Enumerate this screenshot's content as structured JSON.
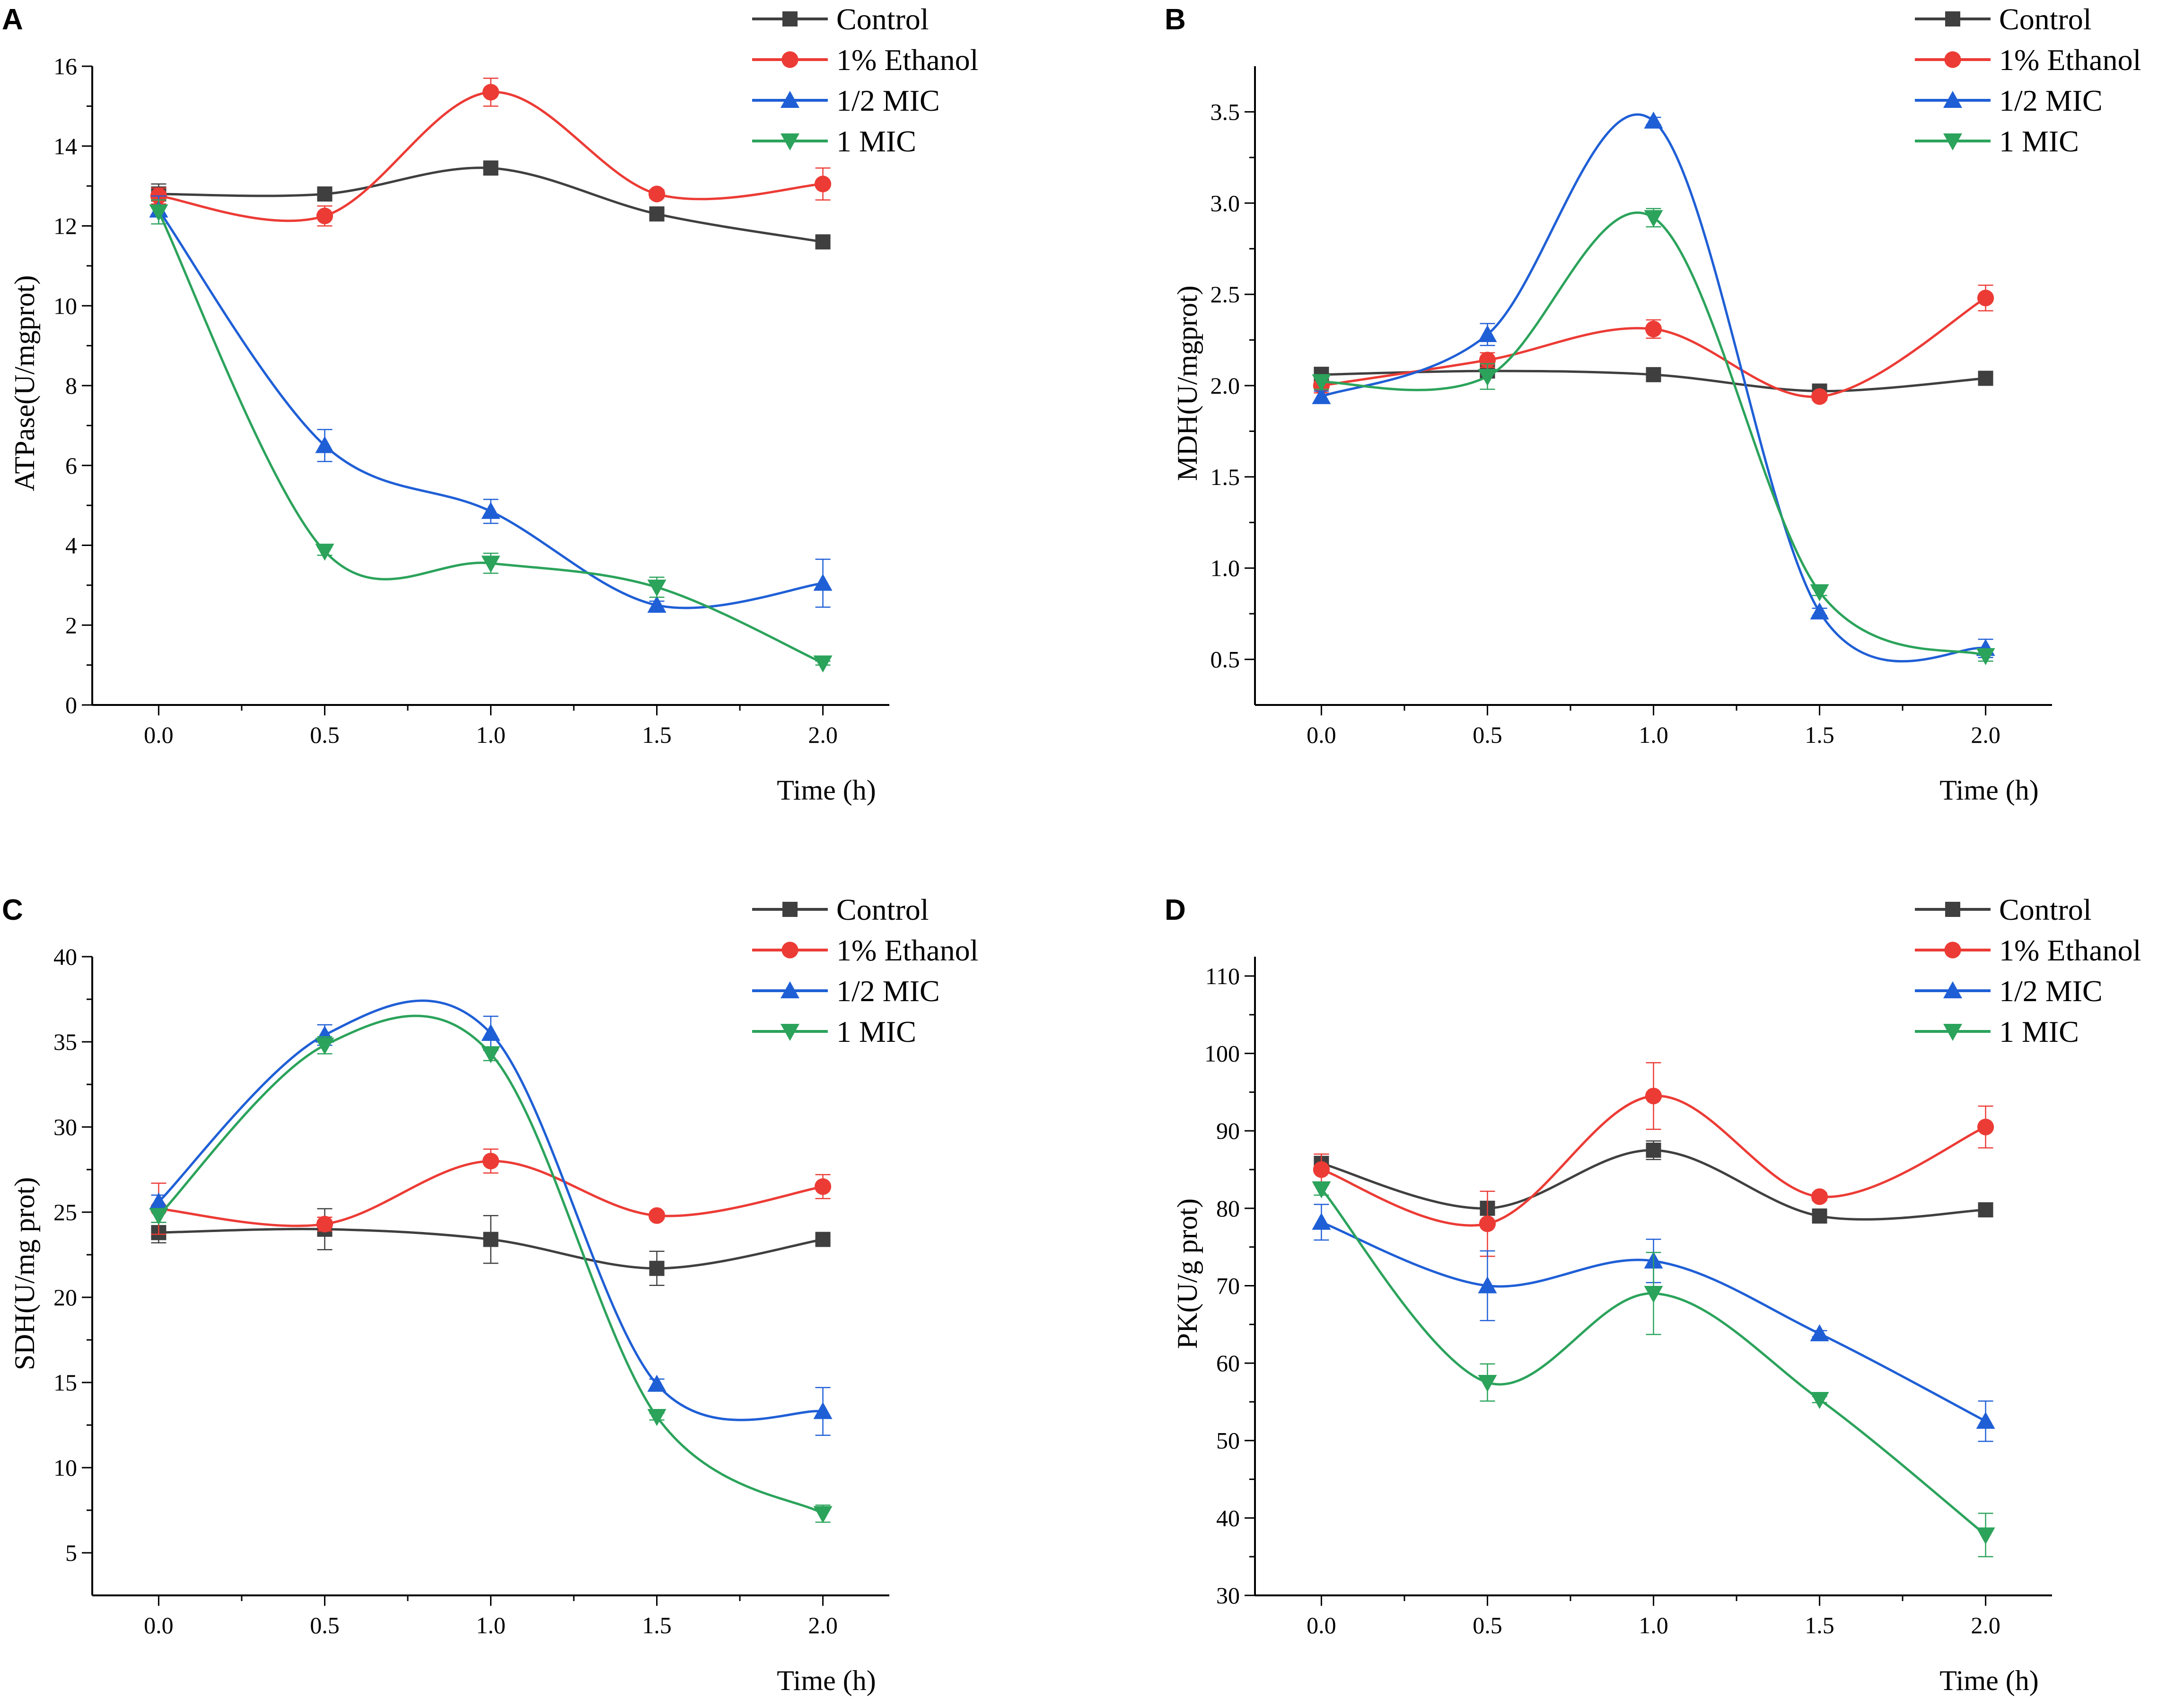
{
  "chart_data": [
    {
      "panel": "A",
      "type": "line",
      "title": "",
      "xlabel": "Time (h)",
      "ylabel": "ATPase(U/mgprot)",
      "xlim": [
        -0.2,
        2.2
      ],
      "ylim": [
        0,
        16
      ],
      "xticks": [
        "0.0",
        "0.5",
        "1.0",
        "1.5",
        "2.0"
      ],
      "yticks": [
        "0",
        "2",
        "4",
        "6",
        "8",
        "10",
        "12",
        "14",
        "16"
      ],
      "x": [
        0,
        0.5,
        1.0,
        1.5,
        2.0
      ],
      "series": [
        {
          "name": "Control",
          "color": "#3f3f3f",
          "marker": "square",
          "values": [
            12.8,
            12.8,
            13.45,
            12.3,
            11.6
          ],
          "errors": [
            0.25,
            0.1,
            0.1,
            0.1,
            0.1
          ]
        },
        {
          "name": "1% Ethanol",
          "color": "#ec3b35",
          "marker": "circle",
          "values": [
            12.75,
            12.25,
            15.35,
            12.8,
            13.05
          ],
          "errors": [
            0.2,
            0.25,
            0.35,
            0.1,
            0.4
          ]
        },
        {
          "name": "1/2 MIC",
          "color": "#1f5fd6",
          "marker": "triangle-up",
          "values": [
            12.4,
            6.5,
            4.85,
            2.5,
            3.05
          ],
          "errors": [
            0.35,
            0.4,
            0.3,
            0.1,
            0.6
          ]
        },
        {
          "name": "1 MIC",
          "color": "#2ba35b",
          "marker": "triangle-down",
          "values": [
            12.35,
            3.85,
            3.55,
            2.95,
            1.05
          ],
          "errors": [
            0.3,
            0.1,
            0.25,
            0.25,
            0.05
          ]
        }
      ],
      "legend": "top-right"
    },
    {
      "panel": "B",
      "type": "line",
      "title": "",
      "xlabel": "Time (h)",
      "ylabel": "MDH(U/mgprot)",
      "xlim": [
        -0.2,
        2.2
      ],
      "ylim": [
        0.25,
        3.75
      ],
      "xticks": [
        "0.0",
        "0.5",
        "1.0",
        "1.5",
        "2.0"
      ],
      "yticks": [
        "0.5",
        "1.0",
        "1.5",
        "2.0",
        "2.5",
        "3.0",
        "3.5"
      ],
      "x": [
        0,
        0.5,
        1.0,
        1.5,
        2.0
      ],
      "series": [
        {
          "name": "Control",
          "color": "#3f3f3f",
          "marker": "square",
          "values": [
            2.06,
            2.08,
            2.06,
            1.97,
            2.04
          ],
          "errors": [
            0.04,
            0.02,
            0.02,
            0.02,
            0.02
          ]
        },
        {
          "name": "1% Ethanol",
          "color": "#ec3b35",
          "marker": "circle",
          "values": [
            2.0,
            2.14,
            2.31,
            1.94,
            2.48
          ],
          "errors": [
            0.04,
            0.04,
            0.05,
            0.02,
            0.07
          ]
        },
        {
          "name": "1/2 MIC",
          "color": "#1f5fd6",
          "marker": "triangle-up",
          "values": [
            1.94,
            2.28,
            3.45,
            0.76,
            0.56
          ],
          "errors": [
            0.03,
            0.06,
            0.02,
            0.02,
            0.05
          ]
        },
        {
          "name": "1 MIC",
          "color": "#2ba35b",
          "marker": "triangle-down",
          "values": [
            2.02,
            2.05,
            2.92,
            0.87,
            0.52
          ],
          "errors": [
            0.04,
            0.07,
            0.05,
            0.02,
            0.03
          ]
        }
      ],
      "legend": "top-right"
    },
    {
      "panel": "C",
      "type": "line",
      "title": "",
      "xlabel": "Time (h)",
      "ylabel": "SDH(U/mg prot)",
      "xlim": [
        -0.2,
        2.2
      ],
      "ylim": [
        2.5,
        40
      ],
      "xticks": [
        "0.0",
        "0.5",
        "1.0",
        "1.5",
        "2.0"
      ],
      "yticks": [
        "5",
        "10",
        "15",
        "20",
        "25",
        "30",
        "35",
        "40"
      ],
      "x": [
        0,
        0.5,
        1.0,
        1.5,
        2.0
      ],
      "series": [
        {
          "name": "Control",
          "color": "#3f3f3f",
          "marker": "square",
          "values": [
            23.8,
            24.0,
            23.4,
            21.7,
            23.4
          ],
          "errors": [
            0.6,
            1.2,
            1.4,
            1.0,
            0.2
          ]
        },
        {
          "name": "1% Ethanol",
          "color": "#ec3b35",
          "marker": "circle",
          "values": [
            25.2,
            24.3,
            28.0,
            24.8,
            26.5
          ],
          "errors": [
            1.5,
            0.4,
            0.7,
            0.2,
            0.7
          ]
        },
        {
          "name": "1/2 MIC",
          "color": "#1f5fd6",
          "marker": "triangle-up",
          "values": [
            25.6,
            35.4,
            35.5,
            14.9,
            13.3
          ],
          "errors": [
            0.4,
            0.6,
            1.0,
            0.3,
            1.4
          ]
        },
        {
          "name": "1 MIC",
          "color": "#2ba35b",
          "marker": "triangle-down",
          "values": [
            24.8,
            34.8,
            34.3,
            13.0,
            7.3
          ],
          "errors": [
            0.4,
            0.5,
            0.4,
            0.2,
            0.5
          ]
        }
      ],
      "legend": "top-right"
    },
    {
      "panel": "D",
      "type": "line",
      "title": "",
      "xlabel": "Time (h)",
      "ylabel": "PK(U/g prot)",
      "xlim": [
        -0.2,
        2.2
      ],
      "ylim": [
        30,
        112.5
      ],
      "xticks": [
        "0.0",
        "0.5",
        "1.0",
        "1.5",
        "2.0"
      ],
      "yticks": [
        "30",
        "40",
        "50",
        "60",
        "70",
        "80",
        "90",
        "100",
        "110"
      ],
      "x": [
        0,
        0.5,
        1.0,
        1.5,
        2.0
      ],
      "series": [
        {
          "name": "Control",
          "color": "#3f3f3f",
          "marker": "square",
          "values": [
            85.8,
            80.0,
            87.5,
            79.0,
            79.8
          ],
          "errors": [
            1.2,
            0.8,
            1.2,
            0.3,
            0.3
          ]
        },
        {
          "name": "1% Ethanol",
          "color": "#ec3b35",
          "marker": "circle",
          "values": [
            85.0,
            78.0,
            94.5,
            81.5,
            90.5
          ],
          "errors": [
            2.0,
            4.2,
            4.3,
            0.5,
            2.7
          ]
        },
        {
          "name": "1/2 MIC",
          "color": "#1f5fd6",
          "marker": "triangle-up",
          "values": [
            78.2,
            70.0,
            73.2,
            63.8,
            52.5
          ],
          "errors": [
            2.3,
            4.5,
            2.8,
            0.4,
            2.6
          ]
        },
        {
          "name": "1 MIC",
          "color": "#2ba35b",
          "marker": "triangle-down",
          "values": [
            82.5,
            57.5,
            69.0,
            55.3,
            37.8
          ],
          "errors": [
            0.8,
            2.4,
            5.3,
            0.4,
            2.8
          ]
        }
      ],
      "legend": "top-right"
    }
  ]
}
